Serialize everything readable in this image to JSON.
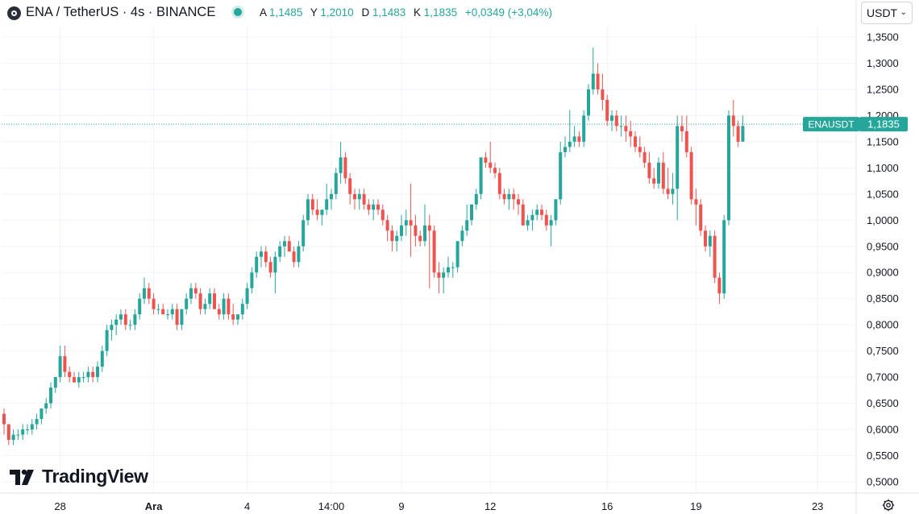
{
  "header": {
    "title": "ENA / TetherUS · 4s · BINANCE",
    "ohlc": [
      {
        "k": "A",
        "v": "1,1485"
      },
      {
        "k": "Y",
        "v": "1,2010"
      },
      {
        "k": "D",
        "v": "1,1483"
      },
      {
        "k": "K",
        "v": "1,1835"
      }
    ],
    "change": "+0,0349 (+3,04%)",
    "currency": "USDT"
  },
  "brand": "TradingView",
  "icons": {
    "logo": "exchange-logo-icon",
    "status": "market-status-icon",
    "settings": "gear-icon",
    "chevron": "chevron-down-icon"
  },
  "colors": {
    "up": "#26a69a",
    "down": "#ef5350",
    "grid": "#f0f3fa",
    "axis_text": "#131722"
  },
  "chart_data": {
    "type": "candlestick",
    "symbol": "ENAUSDT",
    "last_price": 1.1835,
    "last_price_label": "1,1835",
    "symbol_label": "ENAUSDT",
    "y_ticks": [
      "1,3500",
      "1,3000",
      "1,2500",
      "1,2000",
      "1,1500",
      "1,1000",
      "1,0500",
      "1,0000",
      "0,9500",
      "0,9000",
      "0,8500",
      "0,8000",
      "0,7500",
      "0,7000",
      "0,6500",
      "0,6000",
      "0,5500",
      "0,5000"
    ],
    "ylim": [
      0.49,
      1.36
    ],
    "x_ticks": [
      "28",
      "Ara",
      "4",
      "14:00",
      "9",
      "12",
      "16",
      "19",
      "23"
    ],
    "x_tick_candle_index": [
      12,
      32,
      52,
      70,
      85,
      104,
      129,
      148,
      174
    ],
    "grid": true,
    "candles": [
      [
        0.63,
        0.64,
        0.59,
        0.61
      ],
      [
        0.61,
        0.61,
        0.57,
        0.58
      ],
      [
        0.58,
        0.6,
        0.57,
        0.59
      ],
      [
        0.59,
        0.6,
        0.58,
        0.59
      ],
      [
        0.59,
        0.61,
        0.58,
        0.6
      ],
      [
        0.6,
        0.61,
        0.59,
        0.6
      ],
      [
        0.6,
        0.62,
        0.59,
        0.61
      ],
      [
        0.61,
        0.63,
        0.6,
        0.62
      ],
      [
        0.62,
        0.64,
        0.61,
        0.64
      ],
      [
        0.64,
        0.66,
        0.63,
        0.65
      ],
      [
        0.65,
        0.69,
        0.64,
        0.68
      ],
      [
        0.68,
        0.7,
        0.67,
        0.7
      ],
      [
        0.7,
        0.76,
        0.69,
        0.74
      ],
      [
        0.74,
        0.76,
        0.7,
        0.71
      ],
      [
        0.71,
        0.72,
        0.69,
        0.7
      ],
      [
        0.7,
        0.71,
        0.69,
        0.69
      ],
      [
        0.69,
        0.71,
        0.68,
        0.7
      ],
      [
        0.7,
        0.71,
        0.69,
        0.7
      ],
      [
        0.7,
        0.72,
        0.69,
        0.71
      ],
      [
        0.71,
        0.72,
        0.69,
        0.7
      ],
      [
        0.7,
        0.73,
        0.69,
        0.72
      ],
      [
        0.72,
        0.76,
        0.71,
        0.75
      ],
      [
        0.75,
        0.8,
        0.74,
        0.79
      ],
      [
        0.79,
        0.81,
        0.77,
        0.8
      ],
      [
        0.8,
        0.82,
        0.78,
        0.81
      ],
      [
        0.81,
        0.83,
        0.8,
        0.82
      ],
      [
        0.82,
        0.83,
        0.79,
        0.8
      ],
      [
        0.8,
        0.81,
        0.79,
        0.8
      ],
      [
        0.8,
        0.83,
        0.79,
        0.82
      ],
      [
        0.82,
        0.86,
        0.81,
        0.85
      ],
      [
        0.85,
        0.89,
        0.84,
        0.87
      ],
      [
        0.87,
        0.88,
        0.84,
        0.85
      ],
      [
        0.85,
        0.86,
        0.82,
        0.83
      ],
      [
        0.83,
        0.84,
        0.82,
        0.83
      ],
      [
        0.83,
        0.84,
        0.82,
        0.82
      ],
      [
        0.82,
        0.83,
        0.81,
        0.82
      ],
      [
        0.82,
        0.84,
        0.81,
        0.83
      ],
      [
        0.83,
        0.84,
        0.79,
        0.8
      ],
      [
        0.8,
        0.83,
        0.79,
        0.83
      ],
      [
        0.83,
        0.86,
        0.82,
        0.85
      ],
      [
        0.85,
        0.88,
        0.84,
        0.87
      ],
      [
        0.87,
        0.88,
        0.85,
        0.86
      ],
      [
        0.86,
        0.87,
        0.82,
        0.83
      ],
      [
        0.83,
        0.85,
        0.82,
        0.84
      ],
      [
        0.84,
        0.87,
        0.83,
        0.86
      ],
      [
        0.86,
        0.87,
        0.83,
        0.83
      ],
      [
        0.83,
        0.84,
        0.81,
        0.82
      ],
      [
        0.82,
        0.86,
        0.81,
        0.85
      ],
      [
        0.85,
        0.86,
        0.81,
        0.82
      ],
      [
        0.82,
        0.84,
        0.8,
        0.81
      ],
      [
        0.81,
        0.82,
        0.8,
        0.82
      ],
      [
        0.82,
        0.85,
        0.81,
        0.84
      ],
      [
        0.84,
        0.88,
        0.83,
        0.87
      ],
      [
        0.87,
        0.91,
        0.86,
        0.9
      ],
      [
        0.9,
        0.94,
        0.89,
        0.93
      ],
      [
        0.93,
        0.95,
        0.91,
        0.94
      ],
      [
        0.94,
        0.95,
        0.91,
        0.92
      ],
      [
        0.92,
        0.93,
        0.89,
        0.9
      ],
      [
        0.9,
        0.94,
        0.86,
        0.93
      ],
      [
        0.93,
        0.96,
        0.92,
        0.95
      ],
      [
        0.95,
        0.97,
        0.93,
        0.96
      ],
      [
        0.96,
        0.97,
        0.94,
        0.94
      ],
      [
        0.94,
        0.95,
        0.91,
        0.92
      ],
      [
        0.92,
        0.96,
        0.91,
        0.95
      ],
      [
        0.95,
        1.01,
        0.94,
        1.0
      ],
      [
        1.0,
        1.05,
        0.99,
        1.04
      ],
      [
        1.04,
        1.05,
        1.01,
        1.02
      ],
      [
        1.02,
        1.04,
        1.0,
        1.01
      ],
      [
        1.01,
        1.02,
        0.99,
        1.02
      ],
      [
        1.02,
        1.07,
        1.01,
        1.04
      ],
      [
        1.04,
        1.06,
        1.02,
        1.05
      ],
      [
        1.05,
        1.1,
        1.04,
        1.09
      ],
      [
        1.09,
        1.15,
        1.07,
        1.12
      ],
      [
        1.12,
        1.13,
        1.07,
        1.08
      ],
      [
        1.08,
        1.09,
        1.03,
        1.05
      ],
      [
        1.05,
        1.06,
        1.02,
        1.04
      ],
      [
        1.04,
        1.06,
        1.02,
        1.05
      ],
      [
        1.05,
        1.06,
        1.02,
        1.03
      ],
      [
        1.03,
        1.04,
        1.01,
        1.02
      ],
      [
        1.02,
        1.04,
        1.0,
        1.03
      ],
      [
        1.03,
        1.04,
        1.01,
        1.02
      ],
      [
        1.02,
        1.03,
        0.99,
        1.0
      ],
      [
        1.0,
        1.01,
        0.96,
        0.98
      ],
      [
        0.98,
        0.99,
        0.94,
        0.96
      ],
      [
        0.96,
        0.98,
        0.94,
        0.97
      ],
      [
        0.97,
        1.01,
        0.96,
        0.99
      ],
      [
        0.99,
        1.02,
        0.97,
        1.0
      ],
      [
        1.0,
        1.07,
        0.93,
        0.99
      ],
      [
        0.99,
        1.01,
        0.95,
        0.97
      ],
      [
        0.97,
        0.98,
        0.95,
        0.96
      ],
      [
        0.96,
        1.03,
        0.95,
        0.99
      ],
      [
        0.99,
        1.01,
        0.87,
        0.98
      ],
      [
        0.98,
        0.99,
        0.89,
        0.9
      ],
      [
        0.9,
        0.92,
        0.86,
        0.89
      ],
      [
        0.89,
        0.91,
        0.86,
        0.9
      ],
      [
        0.9,
        0.93,
        0.89,
        0.91
      ],
      [
        0.91,
        0.92,
        0.89,
        0.91
      ],
      [
        0.91,
        0.96,
        0.9,
        0.96
      ],
      [
        0.96,
        0.99,
        0.95,
        0.98
      ],
      [
        0.98,
        1.03,
        0.97,
        1.0
      ],
      [
        1.0,
        1.03,
        0.99,
        1.03
      ],
      [
        1.03,
        1.06,
        1.02,
        1.05
      ],
      [
        1.05,
        1.12,
        1.04,
        1.12
      ],
      [
        1.12,
        1.13,
        1.1,
        1.11
      ],
      [
        1.11,
        1.15,
        1.09,
        1.1
      ],
      [
        1.1,
        1.11,
        1.08,
        1.09
      ],
      [
        1.09,
        1.1,
        1.04,
        1.05
      ],
      [
        1.05,
        1.06,
        1.03,
        1.04
      ],
      [
        1.04,
        1.06,
        1.02,
        1.05
      ],
      [
        1.05,
        1.06,
        1.02,
        1.04
      ],
      [
        1.04,
        1.05,
        1.01,
        1.03
      ],
      [
        1.03,
        1.04,
        0.99,
        0.99
      ],
      [
        0.99,
        1.01,
        0.98,
        1.0
      ],
      [
        1.0,
        1.02,
        0.98,
        1.01
      ],
      [
        1.01,
        1.03,
        1.0,
        1.02
      ],
      [
        1.02,
        1.03,
        1.0,
        1.01
      ],
      [
        1.01,
        1.02,
        0.98,
        0.99
      ],
      [
        0.99,
        1.01,
        0.95,
        1.0
      ],
      [
        1.0,
        1.04,
        0.99,
        1.04
      ],
      [
        1.04,
        1.15,
        1.03,
        1.13
      ],
      [
        1.13,
        1.16,
        1.12,
        1.14
      ],
      [
        1.14,
        1.21,
        1.13,
        1.15
      ],
      [
        1.15,
        1.18,
        1.14,
        1.16
      ],
      [
        1.16,
        1.17,
        1.14,
        1.15
      ],
      [
        1.15,
        1.21,
        1.14,
        1.2
      ],
      [
        1.2,
        1.26,
        1.19,
        1.25
      ],
      [
        1.25,
        1.33,
        1.24,
        1.28
      ],
      [
        1.28,
        1.3,
        1.24,
        1.25
      ],
      [
        1.25,
        1.28,
        1.21,
        1.23
      ],
      [
        1.23,
        1.24,
        1.18,
        1.19
      ],
      [
        1.19,
        1.21,
        1.17,
        1.2
      ],
      [
        1.2,
        1.21,
        1.17,
        1.18
      ],
      [
        1.18,
        1.2,
        1.16,
        1.18
      ],
      [
        1.18,
        1.2,
        1.15,
        1.17
      ],
      [
        1.17,
        1.19,
        1.14,
        1.16
      ],
      [
        1.16,
        1.17,
        1.13,
        1.14
      ],
      [
        1.14,
        1.16,
        1.12,
        1.13
      ],
      [
        1.13,
        1.14,
        1.1,
        1.11
      ],
      [
        1.11,
        1.13,
        1.07,
        1.08
      ],
      [
        1.08,
        1.1,
        1.06,
        1.07
      ],
      [
        1.07,
        1.12,
        1.06,
        1.11
      ],
      [
        1.11,
        1.13,
        1.05,
        1.06
      ],
      [
        1.06,
        1.1,
        1.04,
        1.05
      ],
      [
        1.05,
        1.09,
        1.03,
        1.06
      ],
      [
        1.06,
        1.2,
        1.0,
        1.18
      ],
      [
        1.18,
        1.2,
        1.15,
        1.17
      ],
      [
        1.17,
        1.2,
        1.12,
        1.13
      ],
      [
        1.13,
        1.14,
        1.03,
        1.04
      ],
      [
        1.04,
        1.06,
        0.99,
        1.03
      ],
      [
        1.03,
        1.04,
        0.97,
        0.98
      ],
      [
        0.98,
        0.99,
        0.94,
        0.95
      ],
      [
        0.95,
        0.98,
        0.93,
        0.97
      ],
      [
        0.97,
        0.98,
        0.88,
        0.89
      ],
      [
        0.89,
        0.9,
        0.84,
        0.86
      ],
      [
        0.86,
        1.01,
        0.85,
        1.0
      ],
      [
        1.0,
        1.21,
        0.99,
        1.2
      ],
      [
        1.2,
        1.23,
        1.16,
        1.18
      ],
      [
        1.18,
        1.19,
        1.14,
        1.15
      ],
      [
        1.15,
        1.2,
        1.15,
        1.18
      ]
    ]
  }
}
